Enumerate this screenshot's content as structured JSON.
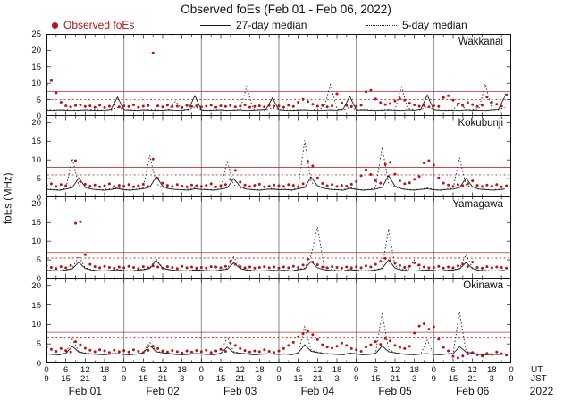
{
  "title": "Observed foEs (Feb 01 - Feb 06, 2022)",
  "legend": [
    {
      "label": "Observed foEs",
      "marker": "red-dot"
    },
    {
      "label": "27-day median",
      "marker": "solid-line"
    },
    {
      "label": "5-day median",
      "marker": "dotted-line"
    }
  ],
  "colors": {
    "observed": "#b51313",
    "median": "#1a1a1a",
    "threshold": "#c03030",
    "separator": "#8a8a8a"
  },
  "axis": {
    "ylabel": "foEs (MHz)",
    "ut_label": "UT",
    "jst_label": "JST",
    "year_label": "2022",
    "ut_day_ticks": [
      "0",
      "6",
      "12",
      "18"
    ],
    "ut_end_tick": "0",
    "jst_day_ticks": [
      "9",
      "15",
      "21",
      "3"
    ],
    "jst_end_tick": "9",
    "date_labels": [
      "Feb 01",
      "Feb 02",
      "Feb 03",
      "Feb 04",
      "Feb 05",
      "Feb 06"
    ]
  },
  "chart_data": {
    "type": "scatter",
    "title": "Observed foEs (Feb 01 - Feb 06, 2022)",
    "ylabel": "foEs (MHz)",
    "x_unit": "hours UT from Feb 01 00:00",
    "x_range_hours": [
      0,
      144
    ],
    "day_boundaries_hours": [
      24,
      48,
      72,
      96,
      120
    ],
    "legend_entries": [
      "Observed foEs",
      "27-day median",
      "5-day median"
    ],
    "panels": [
      {
        "station": "Wakkanai",
        "ylim": [
          0,
          25
        ],
        "yticks": [
          25,
          20,
          15,
          10,
          5,
          0
        ],
        "threshold_solid_mhz": 7.5,
        "threshold_dotted_mhz": 5.0,
        "observed": {
          "dx_hours": 1.5,
          "y_mhz": [
            9.6,
            10.8,
            7.1,
            4.2,
            3.1,
            2.8,
            3.2,
            3.4,
            2.9,
            3.1,
            2.7,
            3.3,
            2.6,
            3.0,
            3.5,
            2.8,
            3.1,
            2.9,
            3.4,
            2.7,
            3.0,
            3.2,
            19.2,
            3.1,
            2.8,
            3.3,
            2.9,
            3.0,
            2.6,
            3.2,
            2.9,
            3.1,
            2.8,
            3.0,
            3.3,
            2.7,
            3.1,
            2.9,
            3.2,
            2.8,
            3.0,
            3.4,
            2.7,
            2.9,
            3.1,
            2.8,
            3.2,
            3.0,
            3.1,
            2.7,
            3.3,
            2.9,
            4.2,
            5.1,
            4.4,
            3.6,
            3.0,
            3.2,
            2.8,
            3.1,
            6.8,
            4.0,
            3.2,
            2.9,
            3.0,
            3.3,
            7.4,
            7.8,
            5.2,
            4.1,
            3.5,
            3.8,
            4.6,
            5.3,
            4.8,
            3.9,
            3.4,
            3.0,
            3.2,
            2.8,
            3.1,
            2.9,
            5.6,
            6.2,
            4.8,
            3.7,
            3.2,
            4.1,
            3.5,
            2.9,
            3.3,
            5.8,
            4.2,
            3.6,
            3.0,
            6.5
          ]
        },
        "median_27day": {
          "dx_hours": 2,
          "y_mhz": [
            1.8,
            1.7,
            1.9,
            1.8,
            1.7,
            1.8,
            1.9,
            1.8,
            1.7,
            1.8,
            2.0,
            5.8,
            1.9,
            1.8,
            1.7,
            1.9,
            1.8,
            1.7,
            1.8,
            1.9,
            1.8,
            1.7,
            2.1,
            6.2,
            1.8,
            1.7,
            1.8,
            1.9,
            1.7,
            1.8,
            1.9,
            1.7,
            1.8,
            1.9,
            2.0,
            5.5,
            1.9,
            1.8,
            1.7,
            1.8,
            1.9,
            1.8,
            1.7,
            1.8,
            1.9,
            1.8,
            2.2,
            6.0,
            1.8,
            1.9,
            1.8,
            1.7,
            1.8,
            1.9,
            1.8,
            1.7,
            1.9,
            1.8,
            2.1,
            6.4,
            1.9,
            1.8,
            1.7,
            1.8,
            1.7,
            1.9,
            1.8,
            1.8,
            1.7,
            1.9,
            2.0,
            5.9
          ]
        },
        "median_5day": {
          "dx_hours": 2,
          "y_mhz": [
            2.0,
            1.9,
            1.8,
            2.0,
            1.9,
            1.8,
            1.9,
            2.0,
            1.9,
            1.8,
            1.9,
            2.6,
            2.0,
            1.9,
            1.8,
            1.9,
            2.0,
            1.9,
            1.8,
            2.1,
            4.5,
            2.0,
            1.9,
            2.8,
            1.9,
            1.8,
            2.0,
            1.9,
            1.8,
            1.9,
            2.0,
            9.0,
            2.2,
            1.9,
            1.8,
            2.5,
            2.0,
            1.9,
            1.8,
            2.0,
            1.9,
            1.8,
            2.1,
            2.4,
            9.6,
            2.1,
            1.9,
            2.7,
            1.9,
            2.0,
            1.9,
            1.8,
            1.9,
            2.0,
            1.9,
            8.8,
            2.3,
            2.0,
            1.9,
            2.9,
            2.0,
            1.9,
            1.8,
            1.9,
            4.0,
            1.9,
            2.0,
            2.2,
            9.8,
            2.1,
            1.9,
            2.6
          ]
        }
      },
      {
        "station": "Kokubunji",
        "ylim": [
          0,
          22
        ],
        "yticks": [
          20,
          15,
          10,
          5,
          0
        ],
        "threshold_solid_mhz": 8.0,
        "threshold_dotted_mhz": 6.0,
        "observed": {
          "dx_hours": 1.5,
          "y_mhz": [
            3.2,
            3.6,
            2.9,
            3.4,
            3.1,
            2.7,
            9.8,
            4.2,
            3.5,
            3.0,
            3.3,
            2.8,
            3.1,
            3.6,
            2.9,
            3.2,
            3.0,
            3.4,
            2.8,
            3.1,
            3.5,
            2.9,
            10.2,
            5.1,
            3.8,
            3.2,
            2.9,
            3.4,
            3.0,
            2.8,
            3.3,
            3.1,
            2.9,
            3.2,
            3.6,
            2.8,
            3.1,
            3.4,
            4.8,
            7.2,
            4.1,
            3.3,
            2.9,
            3.2,
            3.5,
            2.8,
            3.0,
            3.3,
            3.1,
            2.9,
            3.4,
            3.2,
            2.8,
            3.6,
            9.6,
            8.4,
            5.2,
            3.7,
            3.1,
            3.4,
            2.9,
            3.2,
            3.0,
            3.5,
            4.2,
            5.8,
            7.4,
            6.1,
            4.5,
            3.8,
            8.8,
            9.4,
            6.2,
            4.4,
            3.6,
            3.9,
            4.8,
            5.6,
            9.2,
            9.8,
            8.6,
            5.2,
            3.8,
            3.3,
            2.9,
            3.4,
            3.1,
            3.6,
            4.4,
            3.2,
            2.9,
            3.3,
            3.0,
            3.4,
            2.8,
            3.1
          ]
        },
        "median_27day": {
          "dx_hours": 2,
          "y_mhz": [
            2.1,
            2.0,
            1.9,
            2.2,
            2.6,
            5.2,
            2.8,
            2.2,
            2.0,
            1.9,
            2.1,
            2.4,
            2.0,
            1.9,
            2.1,
            2.3,
            2.7,
            5.6,
            3.0,
            2.3,
            2.1,
            2.0,
            1.9,
            2.3,
            2.1,
            2.0,
            1.9,
            2.2,
            2.5,
            5.0,
            2.9,
            2.2,
            2.0,
            1.9,
            2.1,
            2.2,
            2.0,
            2.1,
            1.9,
            2.3,
            2.6,
            5.4,
            3.1,
            2.4,
            2.1,
            2.0,
            1.9,
            2.4,
            2.1,
            1.9,
            2.0,
            2.2,
            2.7,
            5.8,
            3.0,
            2.3,
            2.0,
            1.9,
            2.1,
            2.3,
            2.0,
            1.9,
            2.1,
            2.2,
            2.6,
            5.1,
            2.8,
            2.2,
            2.1,
            1.9,
            2.0,
            2.2
          ]
        },
        "median_5day": {
          "dx_hours": 2,
          "y_mhz": [
            2.2,
            2.1,
            2.0,
            2.4,
            10.4,
            3.2,
            2.5,
            2.2,
            2.0,
            2.1,
            2.3,
            2.6,
            2.1,
            2.0,
            2.2,
            2.5,
            11.2,
            3.6,
            2.6,
            2.3,
            2.1,
            2.0,
            2.2,
            2.5,
            2.2,
            2.1,
            2.0,
            2.3,
            9.8,
            3.4,
            2.5,
            2.2,
            2.1,
            2.0,
            2.1,
            2.4,
            2.1,
            2.2,
            2.0,
            2.6,
            15.2,
            4.1,
            2.8,
            2.4,
            2.2,
            2.1,
            2.0,
            2.6,
            2.2,
            2.0,
            2.1,
            2.5,
            13.4,
            3.8,
            2.7,
            2.3,
            2.1,
            2.0,
            2.2,
            2.5,
            2.1,
            2.0,
            2.2,
            2.4,
            10.6,
            3.3,
            2.6,
            2.2,
            2.0,
            2.1,
            2.1,
            2.3
          ]
        }
      },
      {
        "station": "Yamagawa",
        "ylim": [
          0,
          22
        ],
        "yticks": [
          20,
          15,
          10,
          5,
          0
        ],
        "threshold_solid_mhz": 7.0,
        "threshold_dotted_mhz": 5.5,
        "observed": {
          "dx_hours": 1.5,
          "y_mhz": [
            3.4,
            3.0,
            2.7,
            3.2,
            2.9,
            3.5,
            14.8,
            15.2,
            6.4,
            3.8,
            3.2,
            2.9,
            3.3,
            3.0,
            2.8,
            3.1,
            2.9,
            3.3,
            3.0,
            2.7,
            3.2,
            2.9,
            3.4,
            3.1,
            2.8,
            3.2,
            3.0,
            2.7,
            3.3,
            2.9,
            3.1,
            2.8,
            3.0,
            2.8,
            3.2,
            3.1,
            2.9,
            3.3,
            4.6,
            3.8,
            3.2,
            2.9,
            3.1,
            2.8,
            3.0,
            3.2,
            2.9,
            3.1,
            2.8,
            3.1,
            2.9,
            3.3,
            3.0,
            3.6,
            5.2,
            4.4,
            3.7,
            3.1,
            2.9,
            3.2,
            3.0,
            2.8,
            3.1,
            2.9,
            3.2,
            2.9,
            3.4,
            3.1,
            3.8,
            4.6,
            5.4,
            4.8,
            4.1,
            3.5,
            3.0,
            3.3,
            4.2,
            3.6,
            3.1,
            2.9,
            3.0,
            3.3,
            2.8,
            3.1,
            2.9,
            3.4,
            3.8,
            3.2,
            4.4,
            3.0,
            2.8,
            3.2,
            2.9,
            3.1,
            3.0,
            2.8
          ]
        },
        "median_27day": {
          "dx_hours": 2,
          "y_mhz": [
            2.2,
            2.1,
            2.0,
            2.3,
            2.6,
            4.4,
            2.7,
            2.3,
            2.1,
            2.0,
            2.2,
            2.4,
            2.1,
            2.0,
            2.2,
            2.4,
            2.7,
            4.8,
            2.8,
            2.4,
            2.2,
            2.1,
            2.0,
            2.3,
            2.2,
            2.1,
            2.0,
            2.3,
            2.5,
            4.2,
            2.7,
            2.3,
            2.1,
            2.0,
            2.1,
            2.2,
            2.1,
            2.2,
            2.0,
            2.4,
            2.6,
            4.6,
            2.9,
            2.4,
            2.2,
            2.1,
            2.0,
            2.4,
            2.2,
            2.0,
            2.1,
            2.3,
            2.7,
            5.0,
            2.8,
            2.3,
            2.1,
            2.0,
            2.2,
            2.3,
            2.1,
            2.0,
            2.2,
            2.3,
            2.6,
            4.3,
            2.7,
            2.2,
            2.1,
            2.0,
            2.0,
            2.2
          ]
        },
        "median_5day": {
          "dx_hours": 2,
          "y_mhz": [
            2.3,
            2.2,
            2.1,
            2.4,
            2.8,
            6.0,
            2.9,
            2.4,
            2.2,
            2.1,
            2.2,
            2.5,
            2.2,
            2.1,
            2.3,
            2.5,
            2.9,
            5.2,
            2.8,
            2.4,
            2.2,
            2.1,
            2.2,
            2.4,
            2.3,
            2.2,
            2.1,
            2.4,
            2.7,
            5.8,
            2.9,
            2.4,
            2.2,
            2.1,
            2.1,
            2.3,
            2.2,
            2.3,
            2.1,
            2.5,
            2.8,
            6.2,
            13.8,
            3.2,
            2.5,
            2.2,
            2.1,
            2.5,
            2.3,
            2.1,
            2.2,
            2.4,
            2.9,
            13.2,
            3.4,
            2.6,
            2.3,
            5.0,
            2.2,
            2.4,
            2.2,
            2.1,
            2.3,
            2.4,
            2.7,
            6.4,
            2.8,
            2.3,
            2.2,
            2.1,
            2.1,
            2.3
          ]
        }
      },
      {
        "station": "Okinawa",
        "ylim": [
          0,
          22
        ],
        "yticks": [
          20,
          15,
          10,
          5,
          0
        ],
        "threshold_solid_mhz": 8.0,
        "threshold_dotted_mhz": 6.5,
        "observed": {
          "dx_hours": 1.5,
          "y_mhz": [
            4.2,
            3.6,
            3.1,
            3.8,
            3.3,
            2.9,
            5.6,
            4.8,
            3.9,
            3.4,
            3.0,
            3.5,
            3.2,
            2.8,
            3.4,
            3.0,
            3.3,
            2.9,
            3.5,
            3.1,
            2.8,
            3.4,
            4.4,
            3.8,
            3.2,
            2.9,
            3.3,
            3.0,
            2.7,
            3.2,
            2.9,
            3.3,
            3.0,
            3.4,
            2.8,
            3.2,
            3.6,
            3.1,
            5.2,
            4.6,
            3.8,
            3.3,
            2.9,
            3.2,
            3.0,
            3.5,
            3.1,
            2.8,
            3.2,
            3.8,
            4.6,
            5.4,
            6.8,
            7.6,
            8.2,
            7.4,
            6.1,
            4.8,
            4.2,
            3.9,
            4.4,
            5.2,
            4.6,
            3.8,
            3.5,
            3.1,
            4.2,
            4.8,
            5.6,
            4.9,
            6.4,
            5.8,
            4.6,
            4.1,
            3.8,
            4.4,
            7.8,
            9.6,
            10.2,
            8.8,
            9.4,
            6.2,
            4.1,
            3.2,
            1.8,
            1.4,
            1.9,
            2.4,
            2.8,
            2.2,
            1.9,
            2.6,
            2.3,
            2.9,
            2.5,
            2.1
          ]
        },
        "median_27day": {
          "dx_hours": 2,
          "y_mhz": [
            2.4,
            2.3,
            2.2,
            2.6,
            4.4,
            2.9,
            2.6,
            2.4,
            2.3,
            2.2,
            2.4,
            2.5,
            2.3,
            2.2,
            2.4,
            2.7,
            4.6,
            3.0,
            2.7,
            2.5,
            2.3,
            2.2,
            2.3,
            2.5,
            2.4,
            2.3,
            2.2,
            2.6,
            4.2,
            2.8,
            2.6,
            2.4,
            2.2,
            2.3,
            2.4,
            2.4,
            2.3,
            2.4,
            2.2,
            2.7,
            4.8,
            3.1,
            2.8,
            2.5,
            2.4,
            2.3,
            2.2,
            2.6,
            2.4,
            2.2,
            2.3,
            2.6,
            4.5,
            3.0,
            2.7,
            2.4,
            2.3,
            2.2,
            2.4,
            2.5,
            2.3,
            2.2,
            2.4,
            2.5,
            4.3,
            2.9,
            2.6,
            2.3,
            2.2,
            2.3,
            2.3,
            2.4
          ]
        },
        "median_5day": {
          "dx_hours": 2,
          "y_mhz": [
            2.5,
            2.4,
            2.3,
            2.7,
            6.2,
            3.1,
            2.7,
            2.5,
            2.4,
            2.3,
            2.5,
            2.6,
            2.4,
            2.3,
            2.5,
            2.8,
            5.4,
            3.2,
            2.8,
            2.6,
            2.4,
            2.3,
            2.4,
            2.6,
            2.5,
            2.4,
            2.3,
            2.7,
            6.8,
            3.0,
            2.7,
            2.5,
            2.3,
            2.4,
            2.5,
            2.5,
            2.4,
            2.5,
            2.3,
            2.8,
            9.4,
            3.4,
            2.9,
            2.6,
            2.5,
            2.4,
            2.3,
            2.7,
            2.5,
            2.3,
            2.4,
            2.7,
            12.8,
            3.6,
            2.8,
            2.5,
            2.4,
            2.3,
            2.5,
            6.0,
            2.4,
            2.3,
            2.5,
            2.6,
            13.2,
            3.1,
            2.7,
            2.4,
            2.3,
            2.4,
            2.4,
            2.5
          ]
        }
      }
    ]
  }
}
